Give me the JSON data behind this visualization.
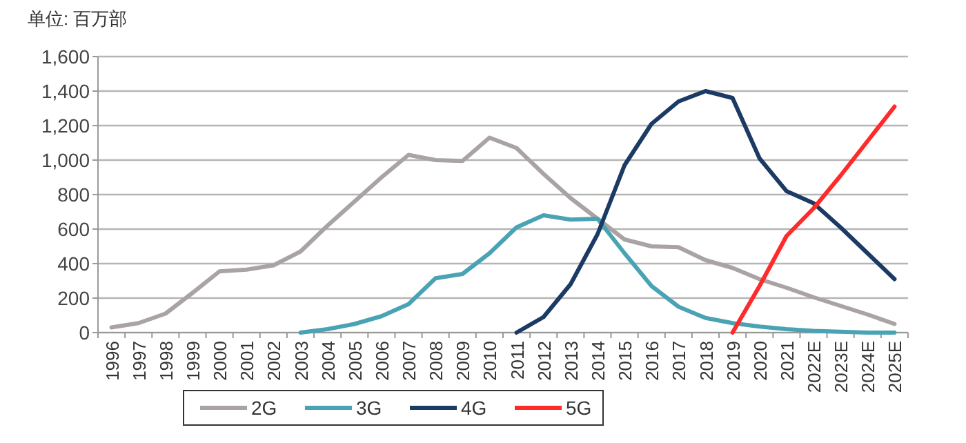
{
  "chart_data": {
    "type": "line",
    "annotations": [
      "单位: 百万部"
    ],
    "categories": [
      "1996",
      "1997",
      "1998",
      "1999",
      "2000",
      "2001",
      "2002",
      "2003",
      "2004",
      "2005",
      "2006",
      "2007",
      "2008",
      "2009",
      "2010",
      "2011",
      "2012",
      "2013",
      "2014",
      "2015",
      "2016",
      "2017",
      "2018",
      "2019",
      "2020",
      "2021",
      "2022E",
      "2023E",
      "2024E",
      "2025E"
    ],
    "series": [
      {
        "name": "2G",
        "color": "#aaa3a3",
        "values": [
          30,
          55,
          110,
          230,
          355,
          365,
          390,
          470,
          620,
          760,
          900,
          1030,
          1000,
          995,
          1130,
          1070,
          920,
          780,
          660,
          540,
          500,
          495,
          420,
          375,
          310,
          260,
          205,
          155,
          105,
          50
        ]
      },
      {
        "name": "3G",
        "color": "#4aa3b5",
        "values": [
          null,
          null,
          null,
          null,
          null,
          null,
          null,
          0,
          20,
          50,
          95,
          165,
          315,
          340,
          460,
          610,
          680,
          655,
          660,
          460,
          270,
          150,
          85,
          55,
          35,
          20,
          10,
          5,
          0,
          0
        ]
      },
      {
        "name": "4G",
        "color": "#1b3a64",
        "values": [
          null,
          null,
          null,
          null,
          null,
          null,
          null,
          null,
          null,
          null,
          null,
          null,
          null,
          null,
          null,
          0,
          90,
          280,
          570,
          970,
          1210,
          1340,
          1400,
          1360,
          1010,
          820,
          750,
          610,
          460,
          310
        ]
      },
      {
        "name": "5G",
        "color": "#ff2a2a",
        "values": [
          null,
          null,
          null,
          null,
          null,
          null,
          null,
          null,
          null,
          null,
          null,
          null,
          null,
          null,
          null,
          null,
          null,
          null,
          null,
          null,
          null,
          null,
          null,
          0,
          270,
          560,
          720,
          910,
          1110,
          1310
        ]
      }
    ],
    "ylim": [
      0,
      1600
    ],
    "yticks": [
      {
        "value": 0,
        "label": "0"
      },
      {
        "value": 200,
        "label": "200"
      },
      {
        "value": 400,
        "label": "400"
      },
      {
        "value": 600,
        "label": "600"
      },
      {
        "value": 800,
        "label": "800"
      },
      {
        "value": 1000,
        "label": "1,000"
      },
      {
        "value": 1200,
        "label": "1,200"
      },
      {
        "value": 1400,
        "label": "1,400"
      },
      {
        "value": 1600,
        "label": "1,600"
      }
    ],
    "grid": "y",
    "legend": "bottom",
    "marker": "none",
    "line_style": "solid"
  }
}
